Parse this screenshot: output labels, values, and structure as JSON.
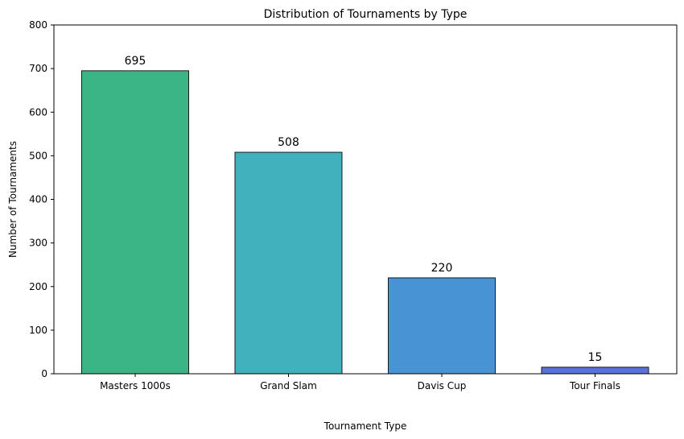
{
  "chart_data": {
    "type": "bar",
    "title": "Distribution of Tournaments by Type",
    "xlabel": "Tournament Type",
    "ylabel": "Number of Tournaments",
    "categories": [
      "Masters 1000s",
      "Grand Slam",
      "Davis Cup",
      "Tour Finals"
    ],
    "values": [
      695,
      508,
      220,
      15
    ],
    "data_labels": [
      "695",
      "508",
      "220",
      "15"
    ],
    "colors": [
      "#3bb586",
      "#41b2bd",
      "#4893d3",
      "#5872d6"
    ],
    "edge_color": "#1a1a1a",
    "ylim": [
      0,
      800
    ],
    "yticks": [
      0,
      100,
      200,
      300,
      400,
      500,
      600,
      700,
      800
    ],
    "ytick_labels": [
      "0",
      "100",
      "200",
      "300",
      "400",
      "500",
      "600",
      "700",
      "800"
    ],
    "grid": false,
    "legend": "none"
  }
}
